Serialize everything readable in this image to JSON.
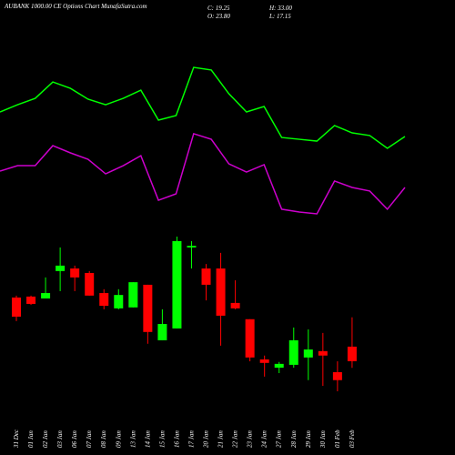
{
  "header": {
    "title": "AUBANK 1000.00 CE Options Chart MunafaSutra.com",
    "stats": [
      "C: 19.25",
      "H: 33.00",
      "O: 23.80",
      "L: 17.15"
    ]
  },
  "chart_data": [
    {
      "type": "candlestick",
      "categories": [
        "31 Dec",
        "01 Jan",
        "02 Jan",
        "03 Jan",
        "06 Jan",
        "07 Jan",
        "08 Jan",
        "09 Jan",
        "13 Jan",
        "14 Jan",
        "15 Jan",
        "16 Jan",
        "17 Jan",
        "20 Jan",
        "21 Jan",
        "22 Jan",
        "23 Jan",
        "24 Jan",
        "27 Jan",
        "28 Jan",
        "29 Jan",
        "30 Jan",
        "01 Feb",
        "03 Feb"
      ],
      "open": [
        39.2,
        39.5,
        38.9,
        47.5,
        48.3,
        46.9,
        40.6,
        35.8,
        36.1,
        43.2,
        25.8,
        29.5,
        54.9,
        48.3,
        48.3,
        37.5,
        32.4,
        19.8,
        17.2,
        18.1,
        20.4,
        22.4,
        15.8,
        23.8
      ],
      "high": [
        39.8,
        39.8,
        45.5,
        54.9,
        49.2,
        47.5,
        41.8,
        41.8,
        44.0,
        43.2,
        35.5,
        58.3,
        56.9,
        49.7,
        53.2,
        44.6,
        32.4,
        21.0,
        19.0,
        29.8,
        29.2,
        28.1,
        19.2,
        33.0
      ],
      "low": [
        31.8,
        36.9,
        38.9,
        41.2,
        41.2,
        39.8,
        35.5,
        35.5,
        36.1,
        24.7,
        25.8,
        29.5,
        48.3,
        38.3,
        24.1,
        35.5,
        19.2,
        14.4,
        15.5,
        17.2,
        13.3,
        11.5,
        9.8,
        17.15
      ],
      "close": [
        33.2,
        37.2,
        40.6,
        49.2,
        45.5,
        39.8,
        36.6,
        40.0,
        44.0,
        28.4,
        30.9,
        56.9,
        55.4,
        43.2,
        33.5,
        35.8,
        20.4,
        18.7,
        18.4,
        25.8,
        22.9,
        21.0,
        13.3,
        19.25
      ],
      "ylim": [
        9.8,
        58.3
      ],
      "up_color": "#00ff00",
      "down_color": "#ff0000"
    },
    {
      "type": "line",
      "series": [
        {
          "color": "#00ff00",
          "values": [
            65,
            69.4,
            73.3,
            83.3,
            79.4,
            72.8,
            69.4,
            73.3,
            78.3,
            60,
            62.8,
            92.2,
            90.6,
            76.1,
            65,
            68.3,
            49.4,
            48.3,
            47.2,
            56.7,
            52.2,
            50.6,
            42.8,
            50
          ]
        },
        {
          "color": "#cc00cc",
          "values": [
            28.9,
            32.2,
            32.2,
            44.4,
            40,
            36.1,
            27.2,
            32.2,
            38.3,
            11.1,
            15,
            51.7,
            48.3,
            33.3,
            28.3,
            32.8,
            5.6,
            3.9,
            2.8,
            22.8,
            18.9,
            16.7,
            5.6,
            18.9
          ]
        }
      ],
      "ylim": [
        0,
        100
      ]
    }
  ]
}
